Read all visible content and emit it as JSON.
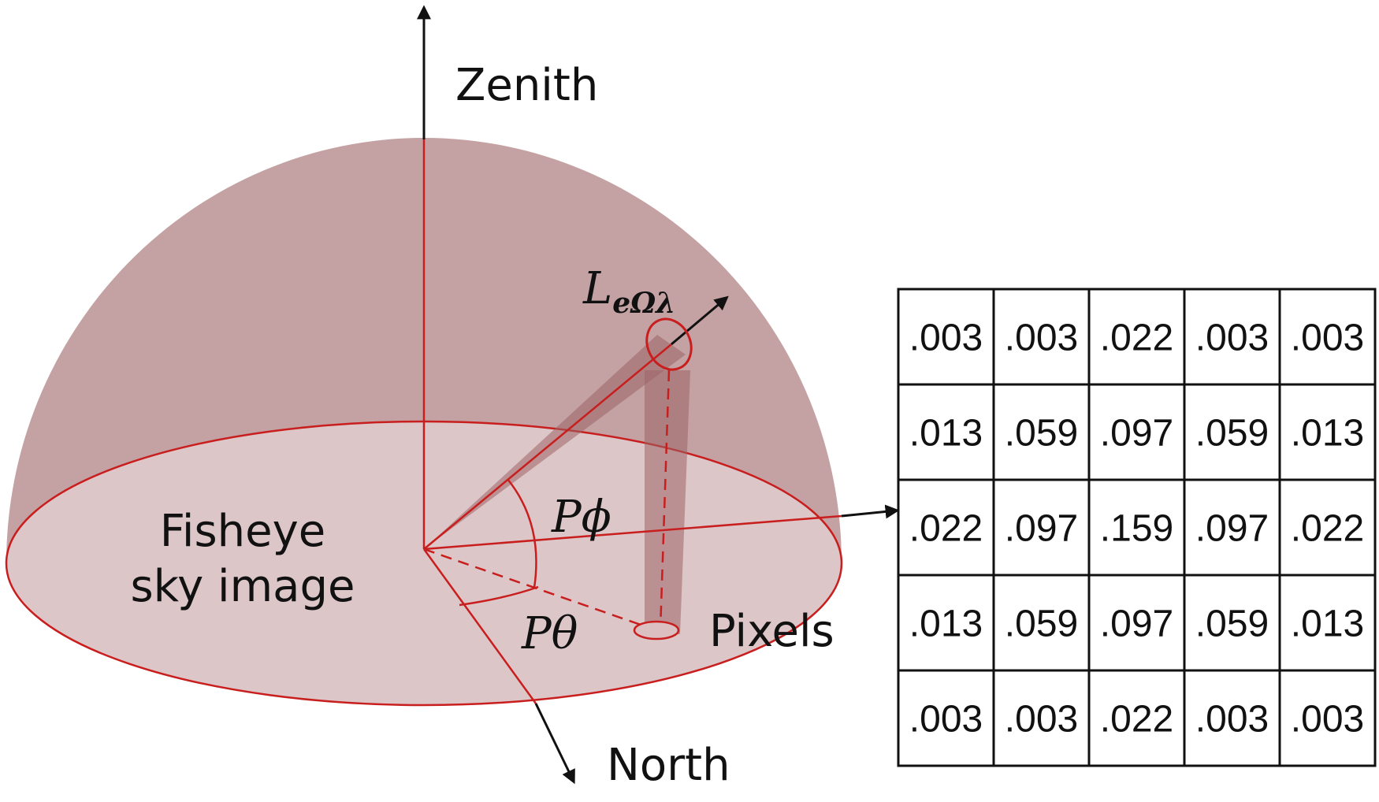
{
  "labels": {
    "zenith": "Zenith",
    "north": "North",
    "fisheye_line1": "Fisheye",
    "fisheye_line2": "sky image",
    "pixels": "Pixels",
    "radiance_main": "L",
    "radiance_sub": "eΩλ",
    "phi": "Pϕ",
    "theta": "Pθ"
  },
  "kernel": {
    "rows": [
      [
        ".003",
        ".003",
        ".022",
        ".003",
        ".003"
      ],
      [
        ".013",
        ".059",
        ".097",
        ".059",
        ".013"
      ],
      [
        ".022",
        ".097",
        ".159",
        ".097",
        ".022"
      ],
      [
        ".013",
        ".059",
        ".097",
        ".059",
        ".013"
      ],
      [
        ".003",
        ".003",
        ".022",
        ".003",
        ".003"
      ]
    ]
  },
  "colors": {
    "dome": "#c4a1a3",
    "base": "#ddc6c8",
    "accent": "#c81e1e",
    "axis": "#111111"
  }
}
